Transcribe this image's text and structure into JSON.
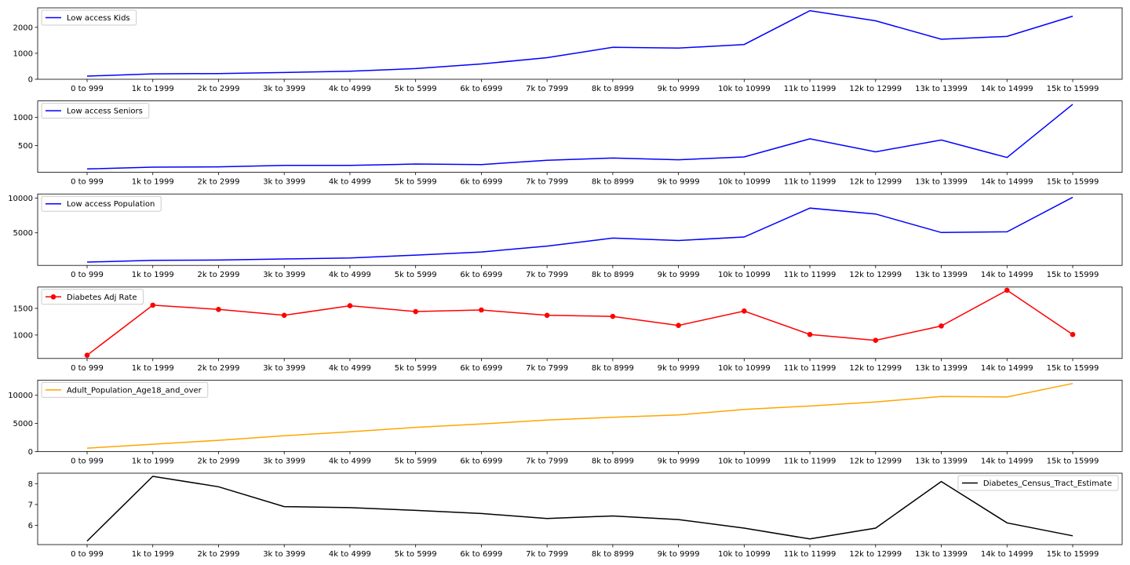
{
  "chart_data": [
    {
      "type": "line",
      "categories": [
        "0 to 999",
        "1k to 1999",
        "2k to 2999",
        "3k to 3999",
        "4k to 4999",
        "5k to 5999",
        "6k to 6999",
        "7k to 7999",
        "8k to 8999",
        "9k to 9999",
        "10k to 10999",
        "11k to 11999",
        "12k to 12999",
        "13k to 13999",
        "14k to 14999",
        "15k to 15999"
      ],
      "series": [
        {
          "name": "Low access Kids",
          "color": "#0000ff",
          "marker": false,
          "values": [
            120,
            210,
            220,
            260,
            310,
            410,
            590,
            830,
            1230,
            1200,
            1340,
            2640,
            2250,
            1540,
            1650,
            2430
          ]
        }
      ],
      "yticks": [
        0,
        1000,
        2000
      ],
      "ylim": [
        0,
        2750
      ],
      "legend": "top-left"
    },
    {
      "type": "line",
      "categories": [
        "0 to 999",
        "1k to 1999",
        "2k to 2999",
        "3k to 3999",
        "4k to 4999",
        "5k to 5999",
        "6k to 6999",
        "7k to 7999",
        "8k to 8999",
        "9k to 9999",
        "10k to 10999",
        "11k to 11999",
        "12k to 12999",
        "13k to 13999",
        "14k to 14999",
        "15k to 15999"
      ],
      "series": [
        {
          "name": "Low access Seniors",
          "color": "#0000ff",
          "marker": false,
          "values": [
            88,
            120,
            125,
            150,
            150,
            175,
            165,
            240,
            280,
            250,
            300,
            620,
            390,
            600,
            290,
            1230
          ]
        }
      ],
      "yticks": [
        500,
        1000
      ],
      "ylim": [
        28,
        1290
      ],
      "legend": "top-left"
    },
    {
      "type": "line",
      "categories": [
        "0 to 999",
        "1k to 1999",
        "2k to 2999",
        "3k to 3999",
        "4k to 4999",
        "5k to 5999",
        "6k to 6999",
        "7k to 7999",
        "8k to 8999",
        "9k to 9999",
        "10k to 10999",
        "11k to 11999",
        "12k to 12999",
        "13k to 13999",
        "14k to 14999",
        "15k to 15999"
      ],
      "series": [
        {
          "name": "Low access Population",
          "color": "#0000ff",
          "marker": false,
          "values": [
            800,
            1050,
            1100,
            1250,
            1400,
            1800,
            2250,
            3100,
            4250,
            3900,
            4400,
            8550,
            7700,
            5050,
            5150,
            10100
          ]
        }
      ],
      "yticks": [
        5000,
        10000
      ],
      "ylim": [
        330,
        10570
      ],
      "legend": "top-left"
    },
    {
      "type": "line",
      "categories": [
        "0 to 999",
        "1k to 1999",
        "2k to 2999",
        "3k to 3999",
        "4k to 4999",
        "5k to 5999",
        "6k to 6999",
        "7k to 7999",
        "8k to 8999",
        "9k to 9999",
        "10k to 10999",
        "11k to 11999",
        "12k to 12999",
        "13k to 13999",
        "14k to 14999",
        "15k to 15999"
      ],
      "series": [
        {
          "name": "Diabetes Adj Rate",
          "color": "#ff0000",
          "marker": true,
          "values": [
            620,
            1560,
            1480,
            1370,
            1550,
            1440,
            1470,
            1370,
            1350,
            1180,
            1450,
            1010,
            900,
            1170,
            1840,
            1010
          ]
        }
      ],
      "yticks": [
        1000,
        1500
      ],
      "ylim": [
        560,
        1900
      ],
      "legend": "top-left"
    },
    {
      "type": "line",
      "categories": [
        "0 to 999",
        "1k to 1999",
        "2k to 2999",
        "3k to 3999",
        "4k to 4999",
        "5k to 5999",
        "6k to 6999",
        "7k to 7999",
        "8k to 8999",
        "9k to 9999",
        "10k to 10999",
        "11k to 11999",
        "12k to 12999",
        "13k to 13999",
        "14k to 14999",
        "15k to 15999"
      ],
      "series": [
        {
          "name": "Adult_Population_Age18_and_over",
          "color": "#ffa500",
          "marker": false,
          "values": [
            600,
            1300,
            2000,
            2800,
            3500,
            4300,
            4900,
            5600,
            6100,
            6500,
            7500,
            8100,
            8800,
            9800,
            9700,
            12100
          ]
        }
      ],
      "yticks": [
        0,
        5000,
        10000
      ],
      "ylim": [
        0,
        12700
      ],
      "legend": "top-left"
    },
    {
      "type": "line",
      "categories": [
        "0 to 999",
        "1k to 1999",
        "2k to 2999",
        "3k to 3999",
        "4k to 4999",
        "5k to 5999",
        "6k to 6999",
        "7k to 7999",
        "8k to 8999",
        "9k to 9999",
        "10k to 10999",
        "11k to 11999",
        "12k to 12999",
        "13k to 13999",
        "14k to 14999",
        "15k to 15999"
      ],
      "series": [
        {
          "name": "Diabetes_Census_Tract_Estimate",
          "color": "#000000",
          "marker": false,
          "values": [
            5.25,
            8.35,
            7.85,
            6.9,
            6.85,
            6.72,
            6.57,
            6.33,
            6.45,
            6.28,
            5.87,
            5.35,
            5.87,
            8.1,
            6.12,
            5.5
          ]
        }
      ],
      "yticks": [
        6,
        7,
        8
      ],
      "ylim": [
        5.08,
        8.5
      ],
      "legend": "top-right"
    }
  ]
}
